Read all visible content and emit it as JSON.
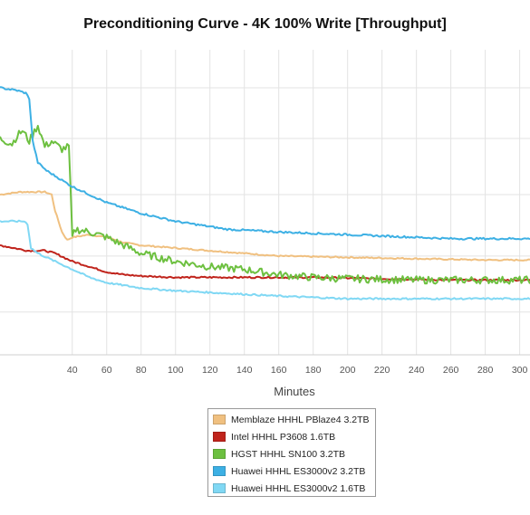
{
  "chart_data": {
    "type": "line",
    "title": "Preconditioning Curve - 4K 100% Write [Throughput]",
    "xlabel": "Minutes",
    "ylabel": "",
    "xlim": [
      -2,
      306
    ],
    "ylim": [
      0,
      100
    ],
    "x_ticks": [
      40,
      60,
      80,
      100,
      120,
      140,
      160,
      180,
      200,
      220,
      240,
      260,
      280,
      300
    ],
    "x_tick_labels": [
      "40",
      "60",
      "80",
      "100",
      "120",
      "140",
      "160",
      "180",
      "200",
      "220",
      "240",
      "260",
      "280",
      "300"
    ],
    "y_gridlines": [
      16,
      37,
      60,
      81,
      100
    ],
    "grid": true,
    "legend_position": "bottom",
    "series": [
      {
        "name": "Memblaze HHHL PBlaze4 3.2TB",
        "color": "#F0C080",
        "noise": 0.25,
        "points": [
          [
            -2,
            60
          ],
          [
            10,
            61
          ],
          [
            24,
            61
          ],
          [
            28,
            60
          ],
          [
            30,
            54
          ],
          [
            34,
            46
          ],
          [
            37,
            43
          ],
          [
            40,
            44
          ],
          [
            50,
            45
          ],
          [
            60,
            44
          ],
          [
            70,
            42
          ],
          [
            80,
            41
          ],
          [
            100,
            40
          ],
          [
            130,
            38.5
          ],
          [
            160,
            37
          ],
          [
            200,
            36.5
          ],
          [
            240,
            36
          ],
          [
            280,
            35.5
          ],
          [
            306,
            35.5
          ]
        ]
      },
      {
        "name": "Intel HHHL P3608 1.6TB",
        "color": "#C0241C",
        "noise": 0.3,
        "points": [
          [
            -2,
            41
          ],
          [
            6,
            40
          ],
          [
            14,
            39
          ],
          [
            24,
            39
          ],
          [
            30,
            38
          ],
          [
            40,
            35
          ],
          [
            50,
            33
          ],
          [
            60,
            31
          ],
          [
            70,
            30
          ],
          [
            80,
            29.5
          ],
          [
            100,
            29
          ],
          [
            130,
            29
          ],
          [
            180,
            29
          ],
          [
            220,
            28.5
          ],
          [
            260,
            28
          ],
          [
            306,
            28
          ]
        ]
      },
      {
        "name": "HGST HHHL SN100 3.2TB",
        "color": "#6DC040",
        "noise": 1.4,
        "points": [
          [
            -2,
            81
          ],
          [
            5,
            79
          ],
          [
            8,
            82
          ],
          [
            11,
            84
          ],
          [
            15,
            80
          ],
          [
            20,
            86
          ],
          [
            24,
            78
          ],
          [
            28,
            80
          ],
          [
            34,
            77
          ],
          [
            38,
            78
          ],
          [
            40,
            44
          ],
          [
            42,
            47
          ],
          [
            50,
            46
          ],
          [
            60,
            44
          ],
          [
            70,
            41
          ],
          [
            80,
            38
          ],
          [
            100,
            35
          ],
          [
            120,
            33
          ],
          [
            140,
            32
          ],
          [
            160,
            30
          ],
          [
            180,
            29
          ],
          [
            200,
            28.5
          ],
          [
            240,
            28
          ],
          [
            280,
            28
          ],
          [
            306,
            28
          ]
        ]
      },
      {
        "name": "Huawei HHHL ES3000v2 3.2TB",
        "color": "#3DB0E4",
        "noise": 0.35,
        "points": [
          [
            -2,
            100
          ],
          [
            8,
            99
          ],
          [
            13,
            98
          ],
          [
            15,
            96
          ],
          [
            17,
            80
          ],
          [
            20,
            72
          ],
          [
            25,
            69
          ],
          [
            30,
            67
          ],
          [
            35,
            65
          ],
          [
            40,
            63
          ],
          [
            50,
            60
          ],
          [
            60,
            57
          ],
          [
            70,
            55
          ],
          [
            80,
            53
          ],
          [
            100,
            50
          ],
          [
            130,
            47
          ],
          [
            160,
            46
          ],
          [
            200,
            45
          ],
          [
            220,
            44.5
          ],
          [
            240,
            44
          ],
          [
            260,
            43.5
          ],
          [
            280,
            43.5
          ],
          [
            306,
            43.5
          ]
        ]
      },
      {
        "name": "Huawei HHHL ES3000v2 1.6TB",
        "color": "#80D8F4",
        "noise": 0.3,
        "points": [
          [
            -2,
            50
          ],
          [
            8,
            50
          ],
          [
            12,
            50
          ],
          [
            14,
            49
          ],
          [
            16,
            40
          ],
          [
            20,
            38
          ],
          [
            30,
            35
          ],
          [
            40,
            32
          ],
          [
            50,
            29
          ],
          [
            60,
            27
          ],
          [
            80,
            25
          ],
          [
            100,
            24
          ],
          [
            130,
            23
          ],
          [
            160,
            22
          ],
          [
            200,
            21
          ],
          [
            240,
            21
          ],
          [
            306,
            21
          ]
        ]
      }
    ]
  }
}
